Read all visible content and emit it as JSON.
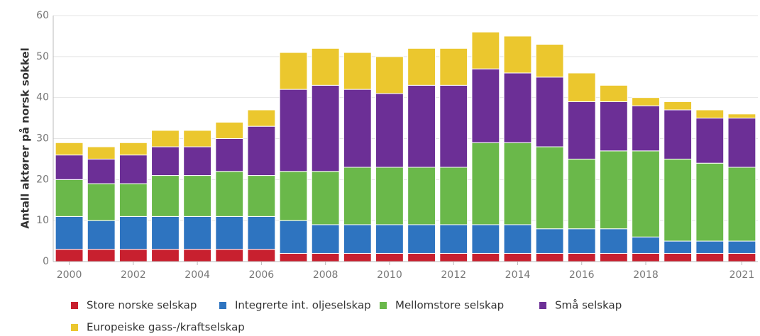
{
  "chart_data": {
    "type": "stacked_bar",
    "ylabel": "Antall aktører på norsk sokkel",
    "categories": [
      "2000",
      null,
      "2002",
      null,
      "2004",
      null,
      "2006",
      null,
      "2008",
      null,
      "2010",
      null,
      "2012",
      null,
      "2014",
      null,
      "2016",
      null,
      "2018",
      null,
      null,
      "2021"
    ],
    "series": [
      {
        "name": "Store norske selskap",
        "color": "#c8202f",
        "values": [
          3,
          3,
          3,
          3,
          3,
          3,
          3,
          2,
          2,
          2,
          2,
          2,
          2,
          2,
          2,
          2,
          2,
          2,
          2,
          2,
          2,
          2
        ]
      },
      {
        "name": "Integrerte int. oljeselskap",
        "color": "#2e74c0",
        "values": [
          8,
          7,
          8,
          8,
          8,
          8,
          8,
          8,
          7,
          7,
          7,
          7,
          7,
          7,
          7,
          6,
          6,
          6,
          4,
          3,
          3,
          3
        ]
      },
      {
        "name": "Mellomstore selskap",
        "color": "#6ab84a",
        "values": [
          9,
          9,
          8,
          10,
          10,
          11,
          10,
          12,
          13,
          14,
          14,
          14,
          14,
          20,
          20,
          20,
          17,
          19,
          21,
          20,
          19,
          18
        ]
      },
      {
        "name": "Små selskap",
        "color": "#6c2f96",
        "values": [
          6,
          6,
          7,
          7,
          7,
          8,
          12,
          20,
          21,
          19,
          18,
          20,
          20,
          18,
          17,
          17,
          14,
          12,
          11,
          12,
          11,
          12
        ]
      },
      {
        "name": "Europeiske gass-/kraftselskap",
        "color": "#ebc72e",
        "values": [
          3,
          3,
          3,
          4,
          4,
          4,
          4,
          9,
          9,
          9,
          9,
          9,
          9,
          9,
          9,
          8,
          7,
          4,
          2,
          2,
          2,
          1
        ]
      }
    ],
    "ylim": [
      0,
      60
    ],
    "yticks": [
      0,
      10,
      20,
      30,
      40,
      50,
      60
    ],
    "grid": true,
    "legend": "bottom"
  }
}
